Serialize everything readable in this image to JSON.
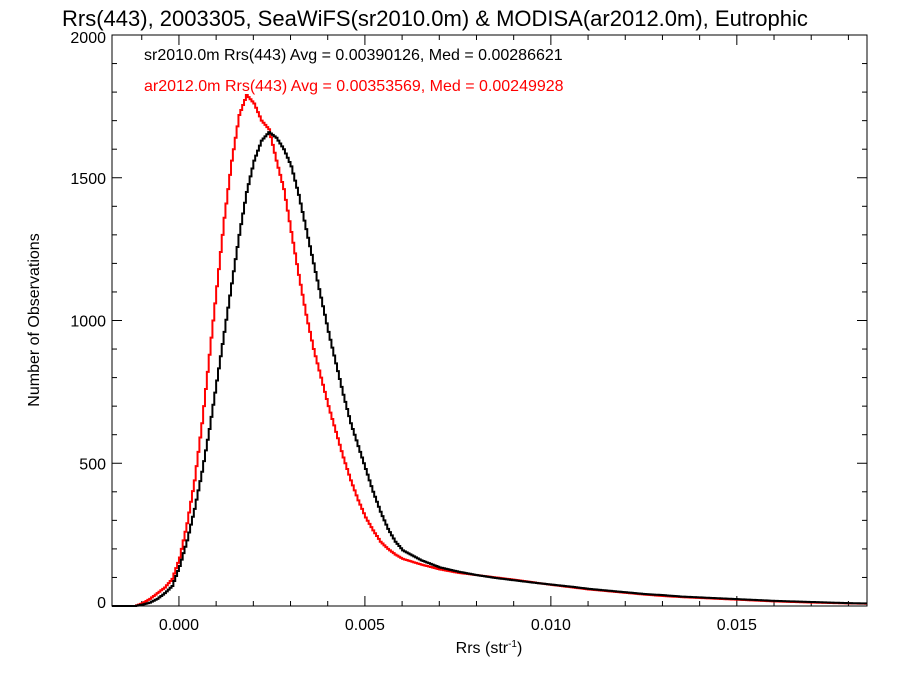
{
  "chart_data": {
    "type": "line",
    "title": "Rrs(443), 2003305, SeaWiFS(sr2010.0m) & MODISA(ar2012.0m), Eutrophic",
    "xlabel": "Rrs (str",
    "xlabel_sup": "-1",
    "xlabel_close": ")",
    "ylabel": "Number of Observations",
    "xlim": [
      -0.0018,
      0.0185
    ],
    "ylim": [
      0,
      2000
    ],
    "x_ticks": [
      {
        "value": 0.0,
        "label": "0.000"
      },
      {
        "value": 0.005,
        "label": "0.005"
      },
      {
        "value": 0.01,
        "label": "0.010"
      },
      {
        "value": 0.015,
        "label": "0.015"
      }
    ],
    "y_ticks": [
      {
        "value": 0,
        "label": "0"
      },
      {
        "value": 500,
        "label": "500"
      },
      {
        "value": 1000,
        "label": "1000"
      },
      {
        "value": 1500,
        "label": "1500"
      },
      {
        "value": 2000,
        "label": "2000"
      }
    ],
    "grid": false,
    "legend_placement": "top-left",
    "series": [
      {
        "name": "sr2010.0m Rrs(443) Avg = 0.00390126, Med = 0.00286621",
        "color": "#000000",
        "points": [
          [
            -0.0018,
            0
          ],
          [
            -0.0012,
            0
          ],
          [
            -0.001,
            5
          ],
          [
            -0.0008,
            12
          ],
          [
            -0.0006,
            25
          ],
          [
            -0.0004,
            45
          ],
          [
            -0.0002,
            70
          ],
          [
            0.0,
            140
          ],
          [
            0.0002,
            230
          ],
          [
            0.0004,
            340
          ],
          [
            0.0006,
            470
          ],
          [
            0.0008,
            620
          ],
          [
            0.001,
            790
          ],
          [
            0.0012,
            960
          ],
          [
            0.0014,
            1130
          ],
          [
            0.0016,
            1300
          ],
          [
            0.0018,
            1450
          ],
          [
            0.002,
            1560
          ],
          [
            0.0022,
            1630
          ],
          [
            0.0024,
            1660
          ],
          [
            0.0026,
            1640
          ],
          [
            0.0028,
            1600
          ],
          [
            0.003,
            1540
          ],
          [
            0.0032,
            1440
          ],
          [
            0.0034,
            1320
          ],
          [
            0.0036,
            1200
          ],
          [
            0.0038,
            1080
          ],
          [
            0.004,
            960
          ],
          [
            0.0042,
            850
          ],
          [
            0.0044,
            740
          ],
          [
            0.0046,
            640
          ],
          [
            0.0048,
            560
          ],
          [
            0.005,
            480
          ],
          [
            0.0052,
            400
          ],
          [
            0.0054,
            330
          ],
          [
            0.0056,
            270
          ],
          [
            0.0058,
            225
          ],
          [
            0.006,
            195
          ],
          [
            0.0065,
            160
          ],
          [
            0.007,
            135
          ],
          [
            0.0075,
            120
          ],
          [
            0.008,
            108
          ],
          [
            0.0085,
            98
          ],
          [
            0.009,
            90
          ],
          [
            0.0095,
            82
          ],
          [
            0.01,
            75
          ],
          [
            0.0105,
            68
          ],
          [
            0.011,
            60
          ],
          [
            0.0115,
            54
          ],
          [
            0.012,
            48
          ],
          [
            0.0125,
            42
          ],
          [
            0.013,
            38
          ],
          [
            0.0135,
            33
          ],
          [
            0.014,
            30
          ],
          [
            0.015,
            24
          ],
          [
            0.016,
            18
          ],
          [
            0.017,
            14
          ],
          [
            0.018,
            10
          ],
          [
            0.0185,
            9
          ]
        ]
      },
      {
        "name": "ar2012.0m Rrs(443) Avg = 0.00353569, Med = 0.00249928",
        "color": "#ff0000",
        "points": [
          [
            -0.0018,
            0
          ],
          [
            -0.0012,
            0
          ],
          [
            -0.001,
            10
          ],
          [
            -0.0008,
            25
          ],
          [
            -0.0006,
            45
          ],
          [
            -0.0004,
            65
          ],
          [
            -0.0002,
            95
          ],
          [
            0.0,
            170
          ],
          [
            0.0002,
            290
          ],
          [
            0.0004,
            440
          ],
          [
            0.0006,
            640
          ],
          [
            0.0008,
            880
          ],
          [
            0.001,
            1120
          ],
          [
            0.0012,
            1360
          ],
          [
            0.0014,
            1560
          ],
          [
            0.0016,
            1720
          ],
          [
            0.0018,
            1790
          ],
          [
            0.002,
            1760
          ],
          [
            0.0022,
            1700
          ],
          [
            0.0024,
            1670
          ],
          [
            0.0026,
            1560
          ],
          [
            0.0028,
            1460
          ],
          [
            0.003,
            1310
          ],
          [
            0.0032,
            1160
          ],
          [
            0.0034,
            1020
          ],
          [
            0.0036,
            900
          ],
          [
            0.0038,
            800
          ],
          [
            0.004,
            700
          ],
          [
            0.0042,
            610
          ],
          [
            0.0044,
            520
          ],
          [
            0.0046,
            440
          ],
          [
            0.0048,
            370
          ],
          [
            0.005,
            310
          ],
          [
            0.0052,
            265
          ],
          [
            0.0054,
            225
          ],
          [
            0.0056,
            200
          ],
          [
            0.0058,
            180
          ],
          [
            0.006,
            165
          ],
          [
            0.0065,
            145
          ],
          [
            0.007,
            128
          ],
          [
            0.0075,
            116
          ],
          [
            0.008,
            108
          ],
          [
            0.0085,
            100
          ],
          [
            0.009,
            92
          ],
          [
            0.0095,
            83
          ],
          [
            0.01,
            74
          ],
          [
            0.0105,
            66
          ],
          [
            0.011,
            58
          ],
          [
            0.0115,
            52
          ],
          [
            0.012,
            46
          ],
          [
            0.0125,
            40
          ],
          [
            0.013,
            35
          ],
          [
            0.0135,
            31
          ],
          [
            0.014,
            28
          ],
          [
            0.015,
            22
          ],
          [
            0.016,
            16
          ],
          [
            0.017,
            12
          ],
          [
            0.018,
            9
          ],
          [
            0.0185,
            8
          ]
        ]
      }
    ]
  }
}
